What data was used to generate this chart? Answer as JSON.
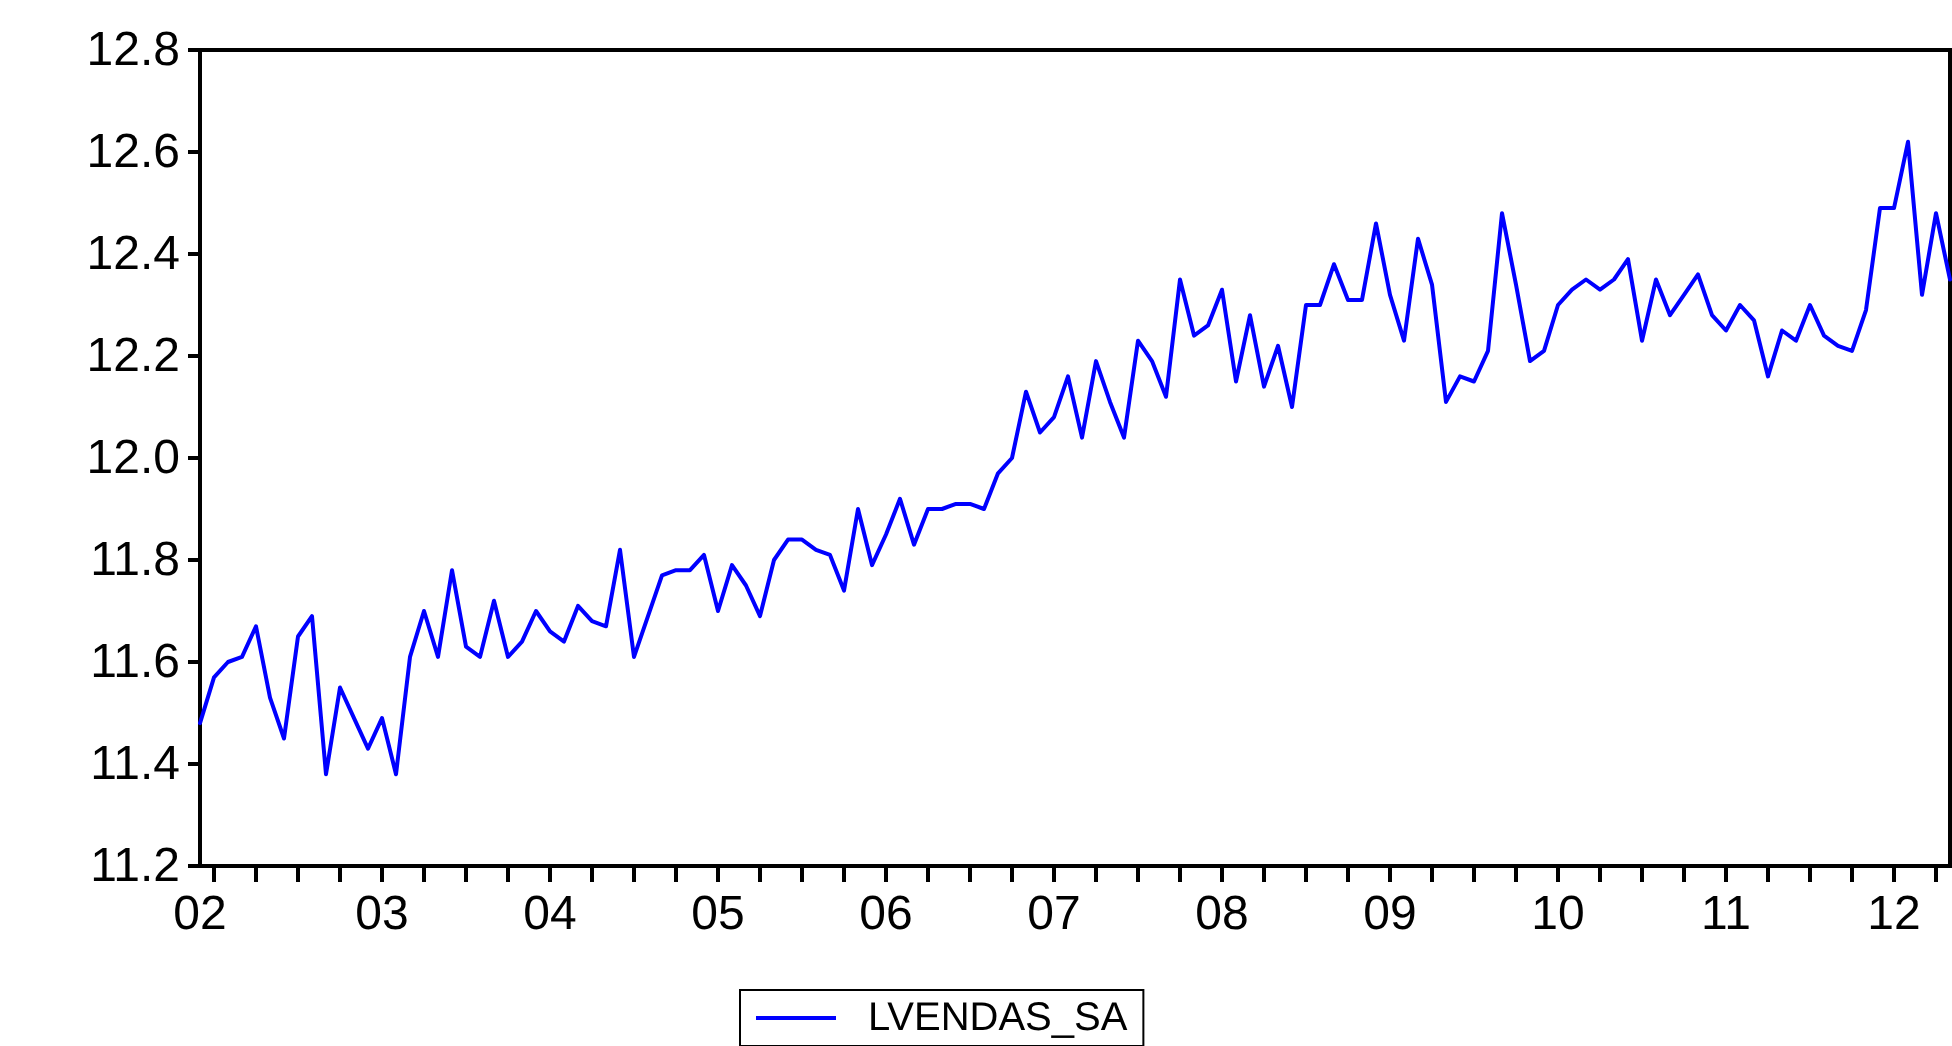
{
  "chart_data": {
    "type": "line",
    "categories": [
      "02",
      null,
      null,
      null,
      null,
      null,
      null,
      null,
      null,
      null,
      null,
      null,
      null,
      "03",
      null,
      null,
      null,
      null,
      null,
      null,
      null,
      null,
      null,
      null,
      null,
      "04",
      null,
      null,
      null,
      null,
      null,
      null,
      null,
      null,
      null,
      null,
      null,
      "05",
      null,
      null,
      null,
      null,
      null,
      null,
      null,
      null,
      null,
      null,
      null,
      "06",
      null,
      null,
      null,
      null,
      null,
      null,
      null,
      null,
      null,
      null,
      null,
      "07",
      null,
      null,
      null,
      null,
      null,
      null,
      null,
      null,
      null,
      null,
      null,
      "08",
      null,
      null,
      null,
      null,
      null,
      null,
      null,
      null,
      null,
      null,
      null,
      "09",
      null,
      null,
      null,
      null,
      null,
      null,
      null,
      null,
      null,
      null,
      null,
      "10",
      null,
      null,
      null,
      null,
      null,
      null,
      null,
      null,
      null,
      null,
      null,
      "11",
      null,
      null,
      null,
      null,
      null,
      null,
      null,
      null,
      null,
      null,
      null,
      "12",
      null,
      null,
      null,
      null
    ],
    "series": [
      {
        "name": "LVENDAS_SA",
        "color": "#0000ff",
        "values": [
          11.48,
          11.57,
          11.6,
          11.61,
          11.67,
          11.53,
          11.45,
          11.65,
          11.69,
          11.38,
          11.55,
          11.49,
          11.43,
          11.49,
          11.38,
          11.61,
          11.7,
          11.61,
          11.78,
          11.63,
          11.61,
          11.72,
          11.61,
          11.64,
          11.7,
          11.66,
          11.64,
          11.71,
          11.68,
          11.67,
          11.82,
          11.61,
          11.69,
          11.77,
          11.78,
          11.78,
          11.81,
          11.7,
          11.79,
          11.75,
          11.69,
          11.8,
          11.84,
          11.84,
          11.82,
          11.81,
          11.74,
          11.9,
          11.79,
          11.85,
          11.92,
          11.83,
          11.9,
          11.9,
          11.91,
          11.91,
          11.9,
          11.97,
          12.0,
          12.13,
          12.05,
          12.08,
          12.16,
          12.04,
          12.19,
          12.11,
          12.04,
          12.23,
          12.19,
          12.12,
          12.35,
          12.24,
          12.26,
          12.33,
          12.15,
          12.28,
          12.14,
          12.22,
          12.1,
          12.3,
          12.3,
          12.38,
          12.31,
          12.31,
          12.46,
          12.32,
          12.23,
          12.43,
          12.34,
          12.11,
          12.16,
          12.15,
          12.21,
          12.48,
          12.34,
          12.19,
          12.21,
          12.3,
          12.33,
          12.35,
          12.33,
          12.35,
          12.39,
          12.23,
          12.35,
          12.28,
          12.32,
          12.36,
          12.28,
          12.25,
          12.3,
          12.27,
          12.16,
          12.25,
          12.23,
          12.3,
          12.24,
          12.22,
          12.21,
          12.29,
          12.49,
          12.49,
          12.62,
          12.32,
          12.48,
          12.35
        ]
      }
    ],
    "ylim": [
      11.2,
      12.8
    ],
    "yticks": [
      11.2,
      11.4,
      11.6,
      11.8,
      {
        "value": 12,
        "label": "12.0"
      },
      12.2,
      12.4,
      12.6,
      12.8
    ],
    "grid": false,
    "legend": "bottom",
    "marker": "none",
    "line_style": "solid"
  }
}
